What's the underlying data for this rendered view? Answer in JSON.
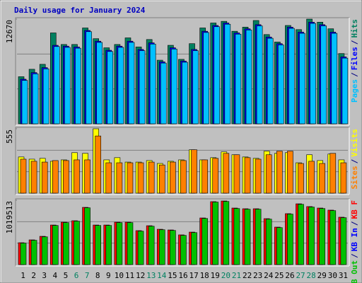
{
  "chart_data": [
    {
      "type": "bar",
      "title": "Daily usage for January 2024",
      "ylim": [
        0,
        12670
      ],
      "yticks": [
        12670
      ],
      "series": [
        {
          "name": "Hits",
          "color": "#008060",
          "values": [
            5700,
            6600,
            7200,
            11000,
            9600,
            9600,
            11600,
            10300,
            9200,
            9600,
            10400,
            9300,
            10200,
            7700,
            9500,
            7800,
            9700,
            11600,
            12200,
            12400,
            11200,
            11700,
            12500,
            10800,
            9900,
            11900,
            11400,
            12670,
            12300,
            11500,
            8500
          ]
        },
        {
          "name": "Files",
          "color": "#0000ff",
          "values": [
            5400,
            6200,
            6800,
            9500,
            9400,
            9300,
            11300,
            10000,
            8900,
            9400,
            10000,
            9000,
            9800,
            7500,
            9200,
            7600,
            9000,
            11200,
            11900,
            12200,
            11000,
            11500,
            12000,
            10500,
            9700,
            11700,
            11100,
            12300,
            12000,
            11100,
            8100
          ]
        },
        {
          "name": "Pages",
          "color": "#00c0ff",
          "values": [
            5250,
            6050,
            6650,
            9350,
            9250,
            9150,
            11150,
            9850,
            8750,
            9250,
            9850,
            8850,
            9650,
            7350,
            9050,
            7450,
            8850,
            11050,
            11750,
            12050,
            10850,
            11350,
            11850,
            10350,
            9550,
            11550,
            10950,
            12150,
            11850,
            10950,
            7950
          ]
        }
      ]
    },
    {
      "type": "bar",
      "ylim": [
        0,
        555
      ],
      "yticks": [
        555
      ],
      "series": [
        {
          "name": "Visits",
          "color": "#ffff00",
          "values": [
            312,
            293,
            300,
            275,
            287,
            349,
            343,
            555,
            287,
            306,
            268,
            268,
            281,
            256,
            275,
            287,
            374,
            287,
            306,
            356,
            331,
            312,
            300,
            362,
            343,
            349,
            262,
            331,
            281,
            337,
            287
          ]
        },
        {
          "name": "Sites",
          "color": "#ff8000",
          "values": [
            293,
            275,
            268,
            281,
            281,
            287,
            287,
            493,
            262,
            262,
            262,
            262,
            268,
            243,
            268,
            281,
            374,
            287,
            300,
            343,
            331,
            306,
            293,
            331,
            362,
            362,
            256,
            275,
            256,
            343,
            262
          ]
        }
      ]
    },
    {
      "type": "bar",
      "ylim": [
        0,
        1019513
      ],
      "yticks": [
        1019513
      ],
      "categories": [
        "1",
        "2",
        "3",
        "4",
        "5",
        "6",
        "7",
        "8",
        "9",
        "10",
        "11",
        "12",
        "13",
        "14",
        "15",
        "16",
        "17",
        "18",
        "19",
        "20",
        "21",
        "22",
        "23",
        "24",
        "25",
        "26",
        "27",
        "28",
        "29",
        "30",
        "31"
      ],
      "category_colors": [
        "#000000",
        "#000000",
        "#000000",
        "#000000",
        "#000000",
        "#008060",
        "#008060",
        "#000000",
        "#000000",
        "#000000",
        "#000000",
        "#000000",
        "#008060",
        "#008060",
        "#000000",
        "#000000",
        "#000000",
        "#000000",
        "#000000",
        "#008060",
        "#008060",
        "#000000",
        "#000000",
        "#000000",
        "#000000",
        "#000000",
        "#008060",
        "#008060",
        "#000000",
        "#000000",
        "#000000"
      ],
      "legend_separator": "/",
      "series": [
        {
          "name": "KB F",
          "color": "#ff0000",
          "values": [
            347000,
            392000,
            448000,
            627000,
            672000,
            695000,
            907000,
            627000,
            627000,
            672000,
            672000,
            538000,
            616000,
            560000,
            549000,
            471000,
            515000,
            739000,
            997000,
            1008000,
            896000,
            885000,
            885000,
            728000,
            594000,
            807000,
            963000,
            919000,
            896000,
            863000,
            751000
          ]
        },
        {
          "name": "KB In",
          "color": "#0000ff",
          "values": [
            null,
            null,
            null,
            null,
            null,
            null,
            null,
            null,
            null,
            null,
            null,
            null,
            null,
            null,
            null,
            null,
            null,
            null,
            null,
            null,
            null,
            null,
            null,
            null,
            null,
            null,
            null,
            null,
            null,
            null,
            null
          ]
        },
        {
          "name": "KB Out",
          "color": "#00c000",
          "values": [
            340000,
            385000,
            440000,
            620000,
            665000,
            688000,
            900000,
            620000,
            620000,
            665000,
            665000,
            530000,
            608000,
            552000,
            541000,
            463000,
            507000,
            731000,
            990000,
            1000000,
            888000,
            877000,
            877000,
            720000,
            586000,
            800000,
            955000,
            911000,
            888000,
            855000,
            743000
          ]
        }
      ]
    }
  ]
}
